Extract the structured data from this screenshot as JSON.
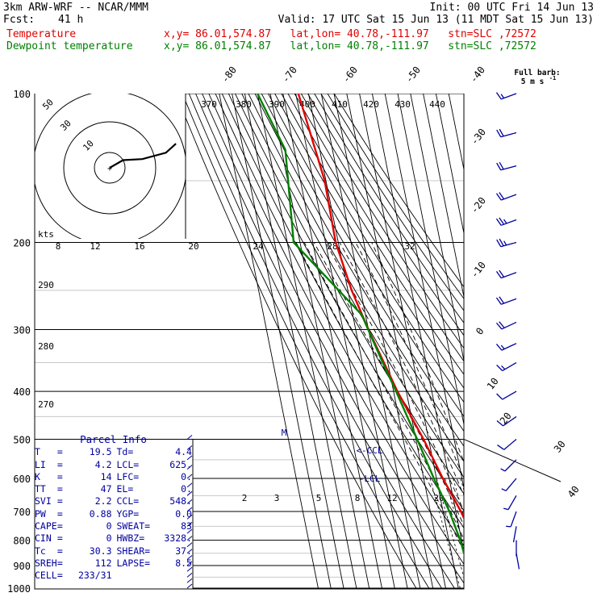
{
  "header": {
    "title": "3km ARW-WRF -- NCAR/MMM",
    "init": "Init: 00 UTC Fri 14 Jun 13",
    "fcst_label": "Fcst:",
    "fcst_value": "41 h",
    "valid": "Valid: 17 UTC Sat 15 Jun 13 (11 MDT Sat 15 Jun 13)",
    "temp_label": "Temperature",
    "temp_loc": "x,y= 86.01,574.87   lat,lon= 40.78,-111.97   stn=SLC ,72572",
    "dew_label": "Dewpoint temperature",
    "dew_loc": "x,y= 86.01,574.87   lat,lon= 40.78,-111.97   stn=SLC ,72572"
  },
  "barb_legend": {
    "line1": "Full barb:",
    "line2": "5 m s",
    "sup": "-1"
  },
  "hodograph": {
    "units": "kts",
    "rings": [
      "10",
      "30",
      "50"
    ]
  },
  "parcel": {
    "title": "Parcel Info",
    "rows": [
      {
        "l1": "T",
        "v1": "19.5",
        "l2": "Td",
        "v2": "4.4"
      },
      {
        "l1": "LI",
        "v1": "4.2",
        "l2": "LCL",
        "v2": "625."
      },
      {
        "l1": "K",
        "v1": "14",
        "l2": "LFC",
        "v2": "0."
      },
      {
        "l1": "TT",
        "v1": "47",
        "l2": "EL",
        "v2": "0."
      },
      {
        "l1": "SVI",
        "v1": "2.2",
        "l2": "CCL",
        "v2": "548."
      },
      {
        "l1": "PW",
        "v1": "0.88",
        "l2": "YGP",
        "v2": "0.0"
      },
      {
        "l1": "CAPE",
        "v1": "0",
        "l2": "SWEAT",
        "v2": "83"
      },
      {
        "l1": "CIN",
        "v1": "0",
        "l2": "HWBZ",
        "v2": "3328."
      },
      {
        "l1": "Tc",
        "v1": "30.3",
        "l2": "SHEAR",
        "v2": "37."
      },
      {
        "l1": "SREH",
        "v1": "112",
        "l2": "LAPSE",
        "v2": "8.5"
      },
      {
        "l1": "CELL",
        "v1": "233/31",
        "l2": "",
        "v2": ""
      }
    ]
  },
  "colors": {
    "temperature": "#e00000",
    "dewpoint": "#008000",
    "wind": "#0000a0",
    "grid": "#000000"
  },
  "chart_data": {
    "type": "line",
    "chart_kind": "skew-T log-P sounding",
    "y_axis": {
      "scale": "log",
      "range": [
        1000,
        100
      ],
      "ticks": [
        "100",
        "200",
        "300",
        "400",
        "500",
        "600",
        "700",
        "800",
        "900",
        "1000"
      ]
    },
    "isotherm_labels": [
      "-80",
      "-70",
      "-60",
      "-50",
      "-40",
      "-30",
      "-20",
      "-10",
      "0",
      "10",
      "20",
      "30",
      "40"
    ],
    "theta_labels": [
      "370",
      "380",
      "390",
      "400",
      "410",
      "420",
      "430",
      "440",
      "290",
      "280",
      "270"
    ],
    "mixing_ratio_labels": [
      "2",
      "3",
      "5",
      "8",
      "12",
      "20"
    ],
    "theta_e_labels": [
      "8",
      "12",
      "16",
      "20",
      "24",
      "28",
      "32"
    ],
    "annotations": [
      "M",
      "<-CCL",
      "-LCL"
    ],
    "series": [
      {
        "name": "Temperature",
        "p": [
          100,
          150,
          200,
          250,
          300,
          400,
          500,
          600,
          700,
          800,
          860,
          875
        ],
        "t": [
          -58,
          -51,
          -52,
          -47,
          -40,
          -27,
          -14,
          -5,
          4,
          10,
          14,
          16
        ]
      },
      {
        "name": "Dewpoint temperature",
        "p": [
          100,
          130,
          200,
          280,
          350,
          400,
          500,
          600,
          700,
          800,
          860,
          875
        ],
        "t": [
          -90,
          -77,
          -85,
          -43,
          -34,
          -28,
          -19,
          -12,
          -5,
          -1,
          0,
          1
        ]
      }
    ],
    "hodograph": [
      {
        "dir": 180,
        "spd": 0
      },
      {
        "dir": 240,
        "spd": 10
      },
      {
        "dir": 255,
        "spd": 22
      },
      {
        "dir": 255,
        "spd": 38
      },
      {
        "dir": 250,
        "spd": 46
      }
    ],
    "wind_barbs": [
      {
        "p": 100,
        "dir": 250,
        "spd": 15
      },
      {
        "p": 120,
        "dir": 255,
        "spd": 18
      },
      {
        "p": 140,
        "dir": 255,
        "spd": 20
      },
      {
        "p": 160,
        "dir": 250,
        "spd": 22
      },
      {
        "p": 180,
        "dir": 250,
        "spd": 24
      },
      {
        "p": 200,
        "dir": 255,
        "spd": 24
      },
      {
        "p": 230,
        "dir": 250,
        "spd": 22
      },
      {
        "p": 260,
        "dir": 250,
        "spd": 20
      },
      {
        "p": 290,
        "dir": 245,
        "spd": 18
      },
      {
        "p": 320,
        "dir": 245,
        "spd": 16
      },
      {
        "p": 350,
        "dir": 240,
        "spd": 14
      },
      {
        "p": 400,
        "dir": 240,
        "spd": 12
      },
      {
        "p": 450,
        "dir": 235,
        "spd": 10
      },
      {
        "p": 500,
        "dir": 230,
        "spd": 8
      },
      {
        "p": 550,
        "dir": 225,
        "spd": 6
      },
      {
        "p": 600,
        "dir": 220,
        "spd": 5
      },
      {
        "p": 650,
        "dir": 210,
        "spd": 4
      },
      {
        "p": 700,
        "dir": 200,
        "spd": 3
      },
      {
        "p": 750,
        "dir": 190,
        "spd": 2
      },
      {
        "p": 800,
        "dir": 180,
        "spd": 2
      },
      {
        "p": 850,
        "dir": 170,
        "spd": 2
      }
    ]
  }
}
